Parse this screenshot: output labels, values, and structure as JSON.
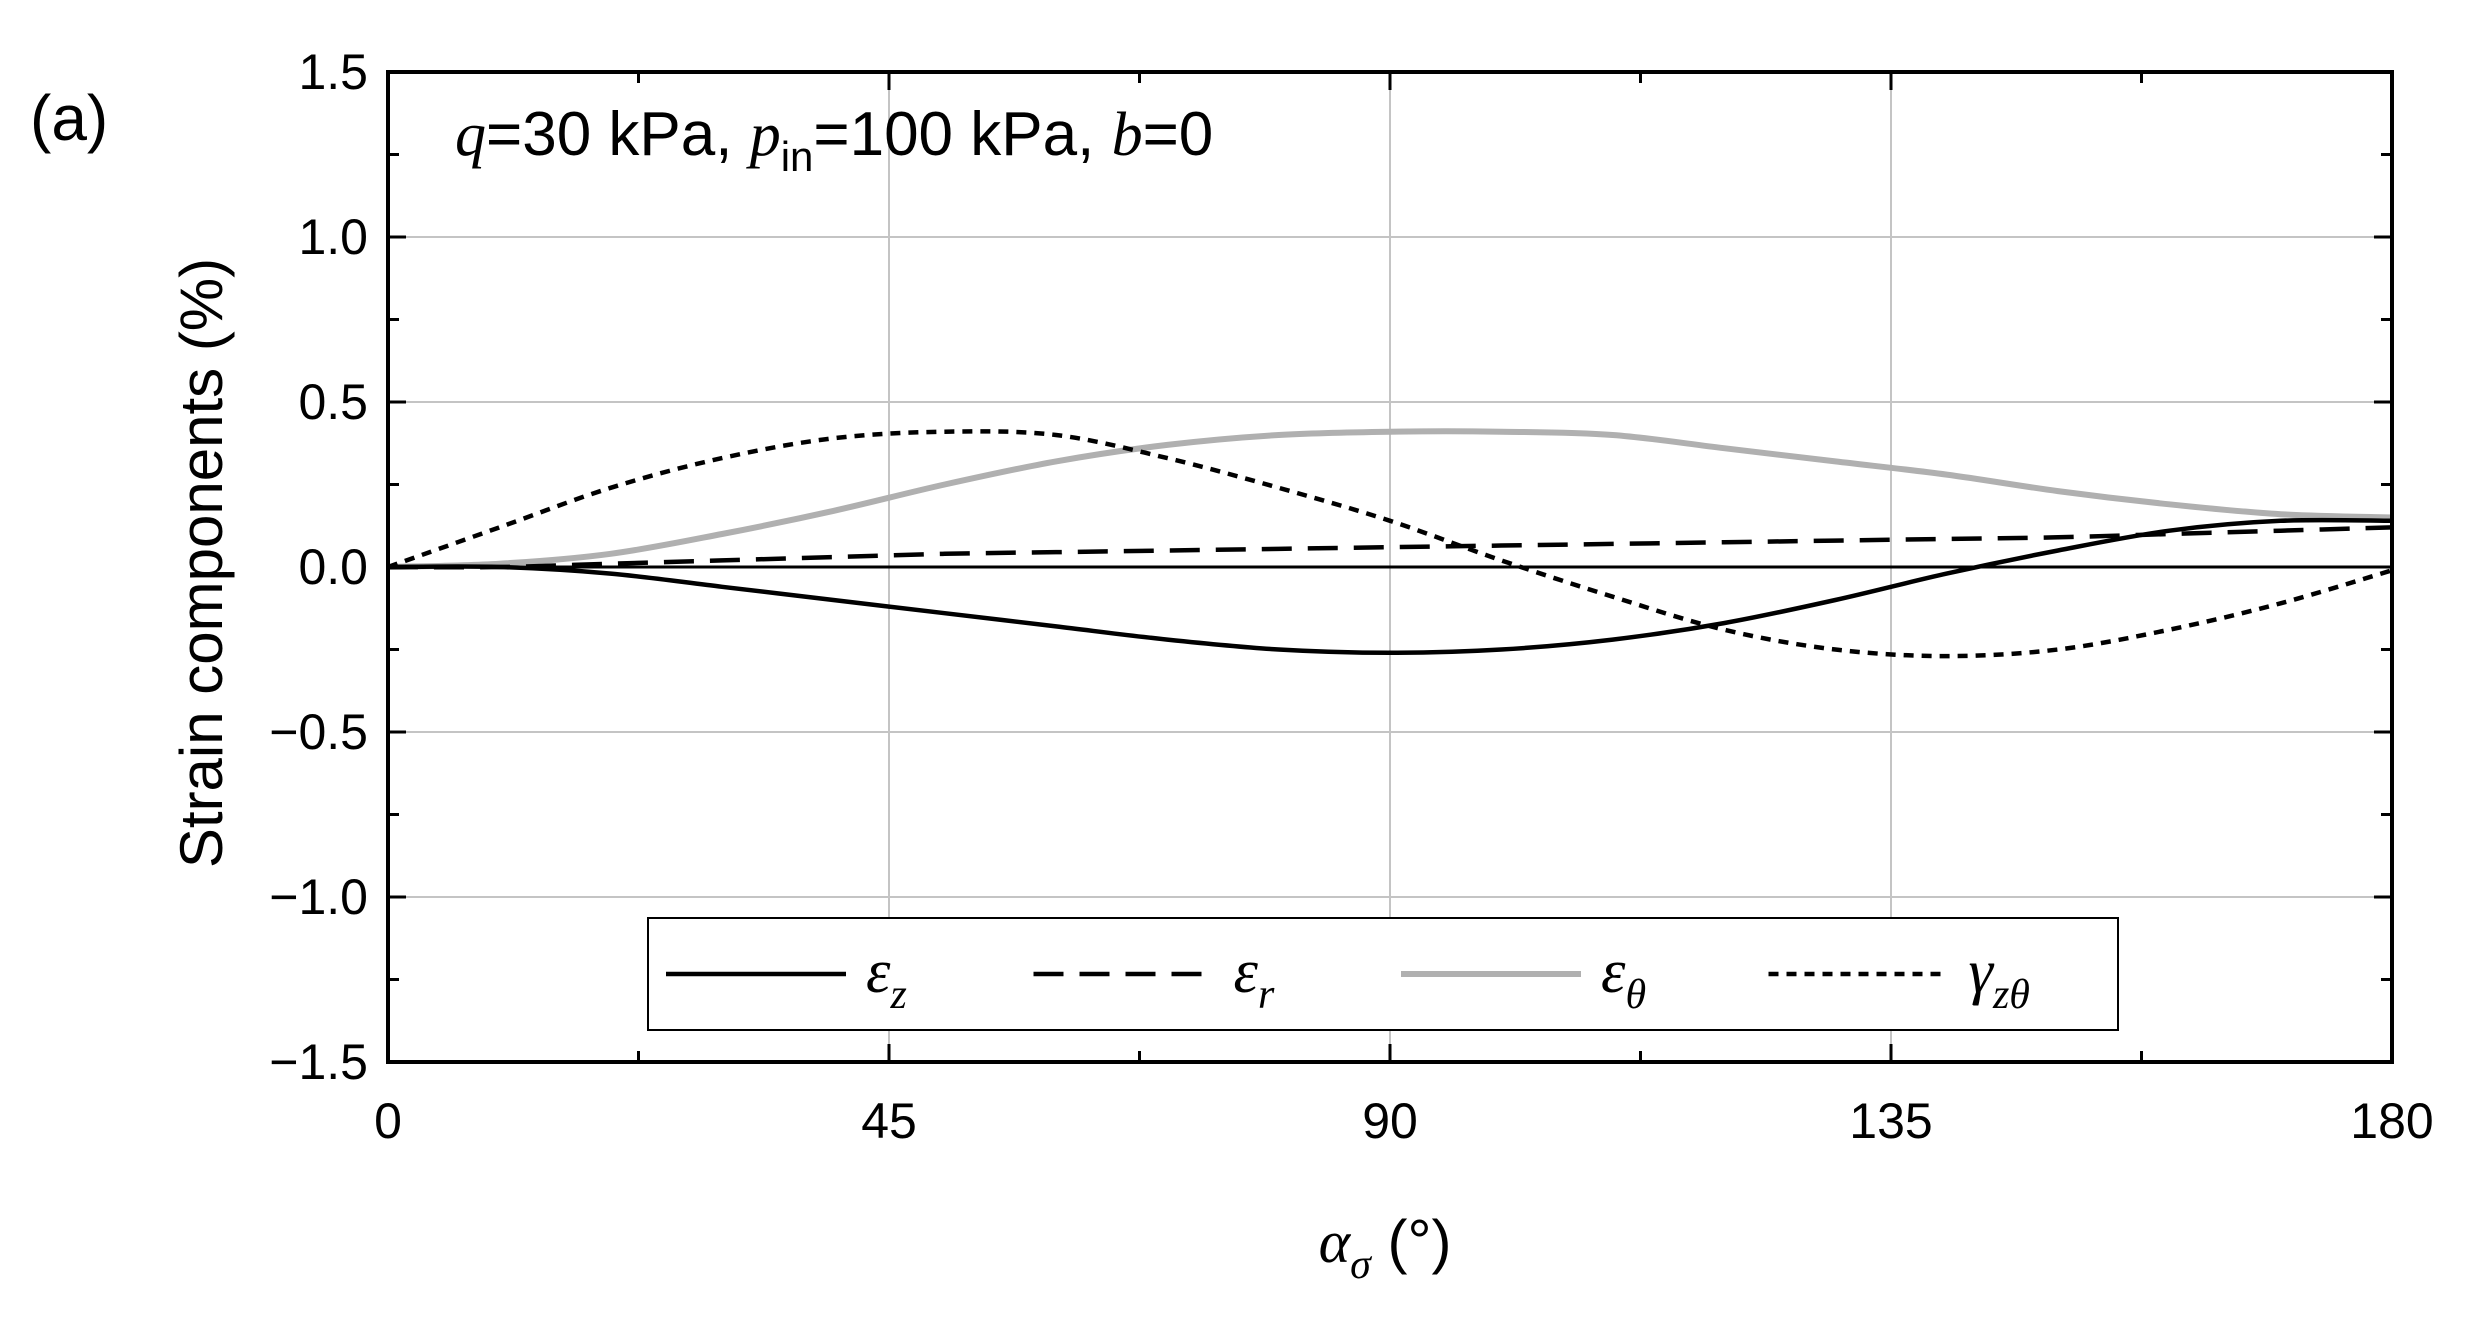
{
  "chart_data": {
    "type": "line",
    "panel_label": "(a)",
    "annotation": {
      "parts": [
        {
          "text": "q",
          "italic": true
        },
        {
          "text": "=30 kPa, "
        },
        {
          "text": "p",
          "italic": true
        },
        {
          "text": "in",
          "sub": true
        },
        {
          "text": "=100 kPa, "
        },
        {
          "text": "b",
          "italic": true
        },
        {
          "text": "=0"
        }
      ]
    },
    "xlabel": {
      "symbol": "α",
      "sub": "σ",
      "unit": " (°)"
    },
    "ylabel": "Strain components (%)",
    "xlim": [
      0,
      180
    ],
    "ylim": [
      -1.5,
      1.5
    ],
    "xticks": [
      0,
      45,
      90,
      135,
      180
    ],
    "xtick_labels": [
      "0",
      "45",
      "90",
      "135",
      "180"
    ],
    "yticks": [
      -1.5,
      -1.0,
      -0.5,
      0.0,
      0.5,
      1.0,
      1.5
    ],
    "ytick_labels": [
      "−1.5",
      "−1.0",
      "−0.5",
      "0.0",
      "0.5",
      "1.0",
      "1.5"
    ],
    "grid": true,
    "legend_position": "bottom-center",
    "x": [
      0,
      10,
      20,
      30,
      40,
      50,
      60,
      70,
      80,
      90,
      100,
      110,
      120,
      130,
      140,
      150,
      160,
      170,
      180
    ],
    "series": [
      {
        "name": {
          "symbol": "ε",
          "sub": "z"
        },
        "color": "#000000",
        "dash": "solid",
        "values": [
          0.0,
          0.0,
          -0.02,
          -0.06,
          -0.1,
          -0.14,
          -0.18,
          -0.22,
          -0.25,
          -0.26,
          -0.25,
          -0.22,
          -0.17,
          -0.1,
          -0.02,
          0.05,
          0.11,
          0.14,
          0.14
        ]
      },
      {
        "name": {
          "symbol": "ε",
          "sub": "r"
        },
        "color": "#000000",
        "dash": "dashed",
        "values": [
          0.0,
          0.0,
          0.01,
          0.02,
          0.03,
          0.04,
          0.045,
          0.05,
          0.055,
          0.06,
          0.065,
          0.07,
          0.075,
          0.08,
          0.085,
          0.09,
          0.1,
          0.11,
          0.12
        ]
      },
      {
        "name": {
          "symbol": "ε",
          "sub": "θ"
        },
        "color": "#b0b0b0",
        "dash": "solid",
        "values": [
          0.0,
          0.01,
          0.04,
          0.1,
          0.17,
          0.25,
          0.32,
          0.37,
          0.4,
          0.41,
          0.41,
          0.4,
          0.36,
          0.32,
          0.28,
          0.23,
          0.19,
          0.16,
          0.15
        ]
      },
      {
        "name": {
          "symbol": "γ",
          "sub": "zθ"
        },
        "color": "#000000",
        "dash": "dotted",
        "values": [
          0.0,
          0.12,
          0.24,
          0.33,
          0.39,
          0.41,
          0.4,
          0.33,
          0.24,
          0.14,
          0.02,
          -0.09,
          -0.19,
          -0.25,
          -0.27,
          -0.25,
          -0.19,
          -0.11,
          -0.01
        ]
      }
    ]
  }
}
